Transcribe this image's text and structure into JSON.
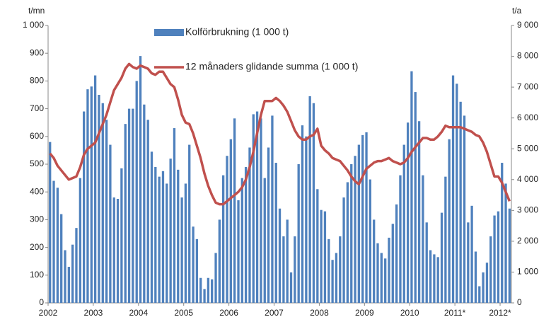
{
  "chart_data": {
    "type": "bar",
    "y_label": "t/mn",
    "y2_label": "t/a",
    "x": [
      2002,
      2002.083,
      2002.167,
      2002.25,
      2002.333,
      2002.417,
      2002.5,
      2002.583,
      2002.667,
      2002.75,
      2002.833,
      2002.917,
      2003,
      2003.083,
      2003.167,
      2003.25,
      2003.333,
      2003.417,
      2003.5,
      2003.583,
      2003.667,
      2003.75,
      2003.833,
      2003.917,
      2004,
      2004.083,
      2004.167,
      2004.25,
      2004.333,
      2004.417,
      2004.5,
      2004.583,
      2004.667,
      2004.75,
      2004.833,
      2004.917,
      2005,
      2005.083,
      2005.167,
      2005.25,
      2005.333,
      2005.417,
      2005.5,
      2005.583,
      2005.667,
      2005.75,
      2005.833,
      2005.917,
      2006,
      2006.083,
      2006.167,
      2006.25,
      2006.333,
      2006.417,
      2006.5,
      2006.583,
      2006.667,
      2006.75,
      2006.833,
      2006.917,
      2007,
      2007.083,
      2007.167,
      2007.25,
      2007.333,
      2007.417,
      2007.5,
      2007.583,
      2007.667,
      2007.75,
      2007.833,
      2007.917,
      2008,
      2008.083,
      2008.167,
      2008.25,
      2008.333,
      2008.417,
      2008.5,
      2008.583,
      2008.667,
      2008.75,
      2008.833,
      2008.917,
      2009,
      2009.083,
      2009.167,
      2009.25,
      2009.333,
      2009.417,
      2009.5,
      2009.583,
      2009.667,
      2009.75,
      2009.833,
      2009.917,
      2010,
      2010.083,
      2010.167,
      2010.25,
      2010.333,
      2010.417,
      2010.5,
      2010.583,
      2010.667,
      2010.75,
      2010.833,
      2010.917,
      2011,
      2011.083,
      2011.167,
      2011.25,
      2011.333,
      2011.417,
      2011.5,
      2011.583,
      2011.667,
      2011.75,
      2011.833,
      2011.917,
      2012,
      2012.083,
      2012.167
    ],
    "series": [
      {
        "name": "Kolförbrukning (1 000 t)",
        "type": "bar",
        "color": "#4f81bd",
        "values": [
          580,
          440,
          415,
          320,
          190,
          130,
          210,
          270,
          450,
          690,
          770,
          780,
          820,
          750,
          720,
          660,
          570,
          380,
          375,
          485,
          645,
          700,
          700,
          800,
          890,
          715,
          660,
          545,
          490,
          455,
          475,
          430,
          520,
          630,
          480,
          380,
          430,
          570,
          275,
          230,
          90,
          50,
          90,
          85,
          180,
          300,
          460,
          530,
          590,
          665,
          370,
          450,
          490,
          560,
          680,
          690,
          665,
          450,
          560,
          675,
          505,
          340,
          240,
          300,
          110,
          240,
          500,
          640,
          600,
          745,
          720,
          410,
          335,
          330,
          230,
          155,
          180,
          240,
          380,
          435,
          500,
          530,
          570,
          605,
          615,
          445,
          300,
          215,
          180,
          160,
          235,
          285,
          355,
          460,
          570,
          650,
          835,
          760,
          655,
          460,
          290,
          190,
          175,
          165,
          325,
          455,
          590,
          820,
          790,
          725,
          675,
          290,
          350,
          185,
          60,
          110,
          145,
          240,
          315,
          330,
          505,
          430,
          340
        ]
      },
      {
        "name": "12 månaders glidande summa (1 000 t)",
        "type": "line",
        "axis": "y2",
        "color": "#c0504d",
        "values": [
          4850,
          4700,
          4450,
          4300,
          4150,
          4000,
          4050,
          4100,
          4400,
          4800,
          5000,
          5100,
          5200,
          5500,
          5800,
          6100,
          6500,
          6900,
          7100,
          7300,
          7600,
          7750,
          7650,
          7600,
          7700,
          7650,
          7600,
          7450,
          7400,
          7500,
          7500,
          7300,
          7100,
          7000,
          6600,
          6100,
          5850,
          5800,
          5500,
          5100,
          4700,
          4200,
          3800,
          3500,
          3250,
          3200,
          3200,
          3300,
          3400,
          3500,
          3600,
          3750,
          4000,
          4400,
          4900,
          5500,
          6100,
          6550,
          6550,
          6550,
          6650,
          6550,
          6400,
          6200,
          5900,
          5600,
          5400,
          5300,
          5300,
          5400,
          5450,
          5650,
          5100,
          4950,
          4850,
          4700,
          4650,
          4600,
          4450,
          4300,
          4100,
          3950,
          3850,
          4100,
          4350,
          4450,
          4550,
          4600,
          4600,
          4650,
          4700,
          4600,
          4550,
          4500,
          4550,
          4700,
          4900,
          5050,
          5200,
          5350,
          5350,
          5300,
          5300,
          5400,
          5550,
          5750,
          5700,
          5700,
          5700,
          5700,
          5650,
          5600,
          5550,
          5450,
          5400,
          5200,
          4900,
          4500,
          4100,
          4100,
          3900,
          3600,
          3300
        ]
      }
    ],
    "xlim": [
      2002,
      2012.25
    ],
    "xticks": [
      2002,
      2003,
      2004,
      2005,
      2006,
      2007,
      2008,
      2009,
      2010,
      {
        "value": 2011,
        "label": "2011*"
      },
      {
        "value": 2012,
        "label": "2012*"
      }
    ],
    "ylim": [
      0,
      1000
    ],
    "yticks": [
      0,
      100,
      200,
      300,
      400,
      500,
      600,
      700,
      800,
      900,
      {
        "value": 1000,
        "label": "1 000"
      }
    ],
    "y2lim": [
      0,
      9000
    ],
    "y2ticks": [
      0,
      {
        "value": 1000,
        "label": "1 000"
      },
      {
        "value": 2000,
        "label": "2 000"
      },
      {
        "value": 3000,
        "label": "3 000"
      },
      {
        "value": 4000,
        "label": "4 000"
      },
      {
        "value": 5000,
        "label": "5 000"
      },
      {
        "value": 6000,
        "label": "6 000"
      },
      {
        "value": 7000,
        "label": "7 000"
      },
      {
        "value": 8000,
        "label": "8 000"
      },
      {
        "value": 9000,
        "label": "9 000"
      }
    ],
    "grid": false
  }
}
